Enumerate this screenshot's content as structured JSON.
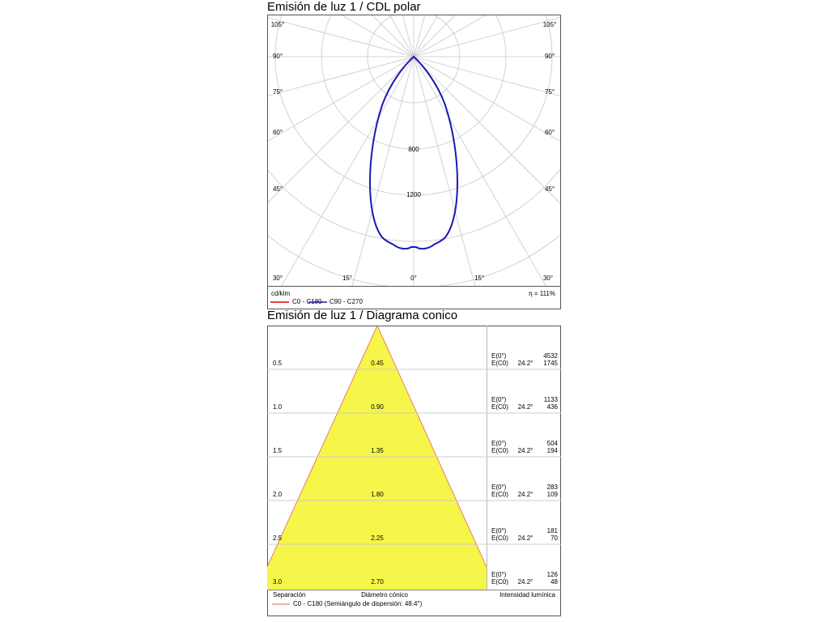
{
  "polar": {
    "title": "Emisión de luz 1 / CDL polar",
    "angle_labels_left": [
      "105°",
      "90°",
      "75°",
      "60°",
      "45°"
    ],
    "angle_labels_right": [
      "105°",
      "90°",
      "75°",
      "60°",
      "45°"
    ],
    "angle_labels_bottom": [
      "30°",
      "15°",
      "0°",
      "15°",
      "30°"
    ],
    "ring_labels": [
      "800",
      "1200"
    ],
    "unit": "cd/klm",
    "efficiency": "η = 111%",
    "legend": [
      "C0 - C180",
      "C90 - C270"
    ]
  },
  "cone": {
    "title": "Emisión de luz 1 / Diagrama conico",
    "rows": [
      {
        "distance": "0.5",
        "diameter": "0.45",
        "e0_label": "E(0°)",
        "ec0_label": "E(C0)",
        "angle": "24.2°",
        "e0": "4532",
        "ec0": "1745"
      },
      {
        "distance": "1.0",
        "diameter": "0.90",
        "e0_label": "E(0°)",
        "ec0_label": "E(C0)",
        "angle": "24.2°",
        "e0": "1133",
        "ec0": "436"
      },
      {
        "distance": "1.5",
        "diameter": "1.35",
        "e0_label": "E(0°)",
        "ec0_label": "E(C0)",
        "angle": "24.2°",
        "e0": "504",
        "ec0": "194"
      },
      {
        "distance": "2.0",
        "diameter": "1.80",
        "e0_label": "E(0°)",
        "ec0_label": "E(C0)",
        "angle": "24.2°",
        "e0": "283",
        "ec0": "109"
      },
      {
        "distance": "2.5",
        "diameter": "2.25",
        "e0_label": "E(0°)",
        "ec0_label": "E(C0)",
        "angle": "24.2°",
        "e0": "181",
        "ec0": "70"
      },
      {
        "distance": "3.0",
        "diameter": "2.70",
        "e0_label": "E(0°)",
        "ec0_label": "E(C0)",
        "angle": "24.2°",
        "e0": "126",
        "ec0": "48"
      }
    ],
    "footer": {
      "separation": "Separación",
      "diameter": "Diámetro cónico",
      "intensity": "Intensidad lumínica"
    },
    "legend": "C0 - C180 (Semiángulo de dispersión: 48.4°)"
  }
}
